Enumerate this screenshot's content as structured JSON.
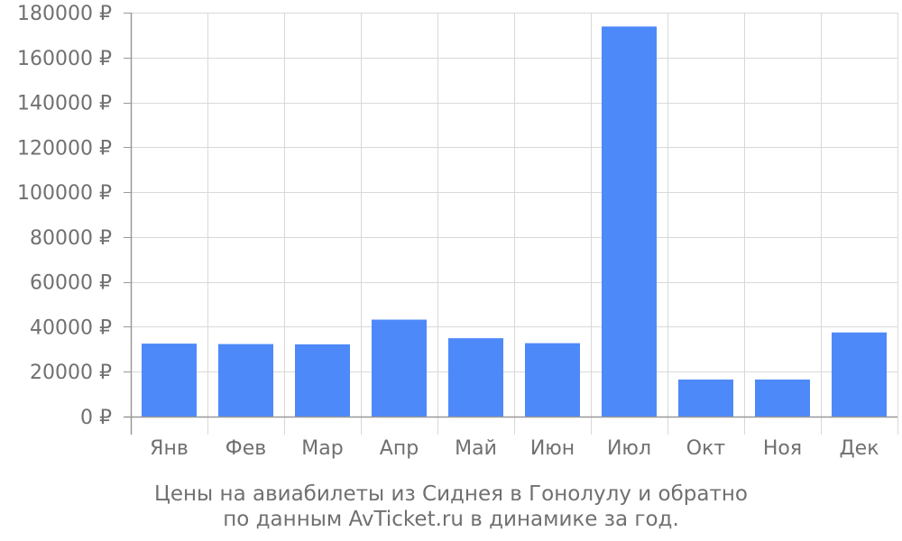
{
  "chart_data": {
    "type": "bar",
    "categories": [
      "Янв",
      "Фев",
      "Мар",
      "Апр",
      "Май",
      "Июн",
      "Июл",
      "Окт",
      "Ноя",
      "Дек"
    ],
    "series": [
      {
        "values": [
          32500,
          32300,
          32200,
          43200,
          34900,
          32700,
          173800,
          16500,
          16500,
          37500
        ]
      }
    ],
    "ylim": [
      0,
      180000
    ],
    "yticks": [
      0,
      20000,
      40000,
      60000,
      80000,
      100000,
      120000,
      140000,
      160000,
      180000
    ],
    "ytick_labels": [
      "0 ₽",
      "20000 ₽",
      "40000 ₽",
      "60000 ₽",
      "80000 ₽",
      "100000 ₽",
      "120000 ₽",
      "140000 ₽",
      "160000 ₽",
      "180000 ₽"
    ],
    "title_lines": [
      "Цены на авиабилеты из Сиднея в Гонолулу и обратно",
      "по данным AvTicket.ru в динамике за год."
    ],
    "grid": true,
    "bar_color": "#4d89f9",
    "grid_color": "#d9d9d9",
    "axis_color": "#999999",
    "text_color": "#707070"
  }
}
